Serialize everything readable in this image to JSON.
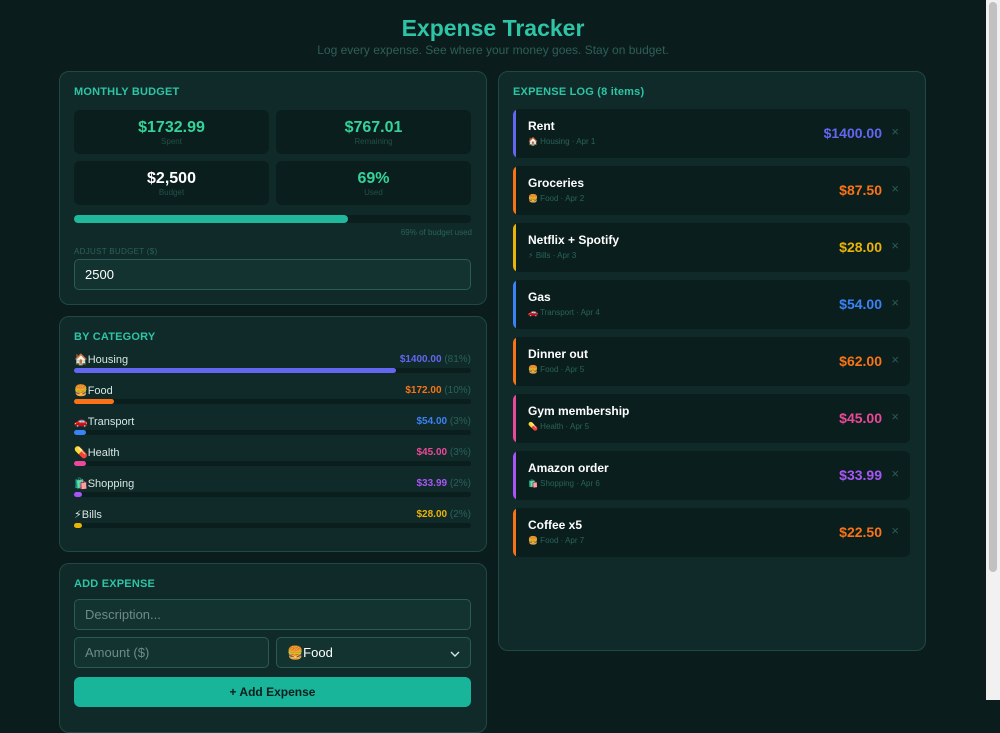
{
  "header": {
    "title": "Expense Tracker",
    "subtitle": "Log every expense. See where your money goes. Stay on budget."
  },
  "budget": {
    "title": "MONTHLY BUDGET",
    "stats": [
      {
        "value": "$1732.99",
        "label": "Spent"
      },
      {
        "value": "$767.01",
        "label": "Remaining"
      },
      {
        "value": "$2,500",
        "label": "Budget"
      },
      {
        "value": "69%",
        "label": "Used"
      }
    ],
    "progress_fraction": 0.69,
    "progress_caption": "69% of budget used",
    "adjust_label": "ADJUST BUDGET ($)",
    "input_value": "2500"
  },
  "categories": {
    "title": "BY CATEGORY",
    "items": [
      {
        "icon": "🏠",
        "name": "Housing",
        "amount": "$1400.00",
        "pct": "(81%)",
        "fraction": 0.81,
        "color": "#6366f1"
      },
      {
        "icon": "🍔",
        "name": "Food",
        "amount": "$172.00",
        "pct": "(10%)",
        "fraction": 0.1,
        "color": "#f97316"
      },
      {
        "icon": "🚗",
        "name": "Transport",
        "amount": "$54.00",
        "pct": "(3%)",
        "fraction": 0.03,
        "color": "#3b82f6"
      },
      {
        "icon": "💊",
        "name": "Health",
        "amount": "$45.00",
        "pct": "(3%)",
        "fraction": 0.03,
        "color": "#ec4899"
      },
      {
        "icon": "🛍️",
        "name": "Shopping",
        "amount": "$33.99",
        "pct": "(2%)",
        "fraction": 0.02,
        "color": "#a855f7"
      },
      {
        "icon": "⚡",
        "name": "Bills",
        "amount": "$28.00",
        "pct": "(2%)",
        "fraction": 0.02,
        "color": "#eab308"
      }
    ]
  },
  "add_expense": {
    "title": "ADD EXPENSE",
    "description_placeholder": "Description...",
    "amount_placeholder": "Amount ($)",
    "category_selected": "🍔Food",
    "button_label": "+ Add Expense"
  },
  "log": {
    "title": "EXPENSE LOG (8 items)",
    "entries": [
      {
        "name": "Rent",
        "meta": "🏠 Housing · Apr 1",
        "amount": "$1400.00",
        "color": "#6366f1"
      },
      {
        "name": "Groceries",
        "meta": "🍔 Food · Apr 2",
        "amount": "$87.50",
        "color": "#f97316"
      },
      {
        "name": "Netflix + Spotify",
        "meta": "⚡ Bills · Apr 3",
        "amount": "$28.00",
        "color": "#eab308"
      },
      {
        "name": "Gas",
        "meta": "🚗 Transport · Apr 4",
        "amount": "$54.00",
        "color": "#3b82f6"
      },
      {
        "name": "Dinner out",
        "meta": "🍔 Food · Apr 5",
        "amount": "$62.00",
        "color": "#f97316"
      },
      {
        "name": "Gym membership",
        "meta": "💊 Health · Apr 5",
        "amount": "$45.00",
        "color": "#ec4899"
      },
      {
        "name": "Amazon order",
        "meta": "🛍️ Shopping · Apr 6",
        "amount": "$33.99",
        "color": "#a855f7"
      },
      {
        "name": "Coffee x5",
        "meta": "🍔 Food · Apr 7",
        "amount": "$22.50",
        "color": "#f97316"
      }
    ],
    "delete_glyph": "×"
  }
}
